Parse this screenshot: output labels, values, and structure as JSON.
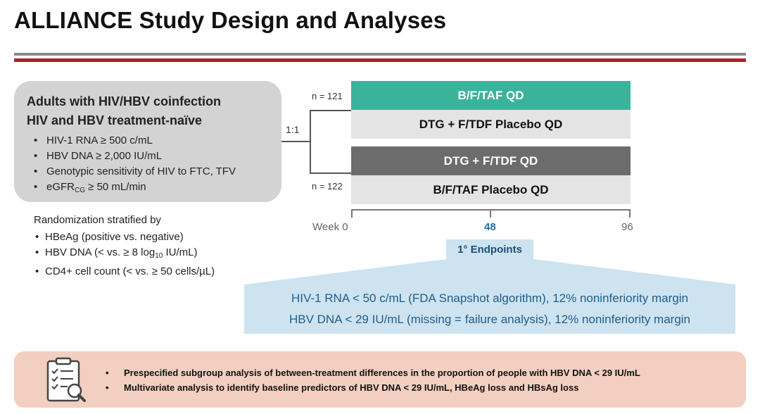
{
  "title": "ALLIANCE Study Design and Analyses",
  "population": {
    "heading_1": "Adults with HIV/HBV coinfection",
    "heading_2": "HIV and HBV treatment-naïve",
    "criteria": [
      "HIV-1 RNA ≥ 500 c/mL",
      "HBV DNA ≥ 2,000 IU/mL",
      "Genotypic sensitivity of HIV to FTC, TFV"
    ],
    "egfr_prefix": "eGFR",
    "egfr_sub": "CG",
    "egfr_suffix": " ≥ 50 mL/min"
  },
  "stratification": {
    "title": "Randomization stratified by",
    "item_1": "HBeAg (positive vs. negative)",
    "item_2_prefix": "HBV DNA (< vs. ≥ 8 log",
    "item_2_sub": "10",
    "item_2_suffix": " IU/mL)",
    "item_3": "CD4+ cell count (< vs. ≥ 50 cells/µL)"
  },
  "randomization": {
    "ratio": "1:1",
    "n_arm1": "n = 121",
    "n_arm2": "n = 122"
  },
  "arms": {
    "arm1_active": "B/F/TAF QD",
    "arm1_placebo": "DTG + F/TDF Placebo QD",
    "arm2_active": "DTG + F/TDF QD",
    "arm2_placebo": "B/F/TAF Placebo QD"
  },
  "timeline": {
    "start": "Week 0",
    "mid": "48",
    "end": "96"
  },
  "endpoints": {
    "label": "1° Endpoints",
    "line_1": "HIV-1 RNA < 50 c/mL (FDA Snapshot algorithm), 12% noninferiority margin",
    "line_2": "HBV DNA < 29 IU/mL (missing = failure analysis), 12% noninferiority margin"
  },
  "analyses": [
    "Prespecified subgroup analysis of between-treatment differences in the proportion of people with HBV DNA < 29 IU/mL",
    "Multivariate analysis to identify baseline predictors of HBV DNA < 29 IU/mL, HBeAg loss and HBsAg loss"
  ],
  "colors": {
    "green_arm": "#3bb39a",
    "dark_arm": "#6c6c6c",
    "endpoint_blue": "#cde3ef",
    "footer_peach": "#f2cfc1",
    "rule_red": "#b01f24"
  },
  "icons": {
    "footer": "checklist-magnifier-icon"
  }
}
